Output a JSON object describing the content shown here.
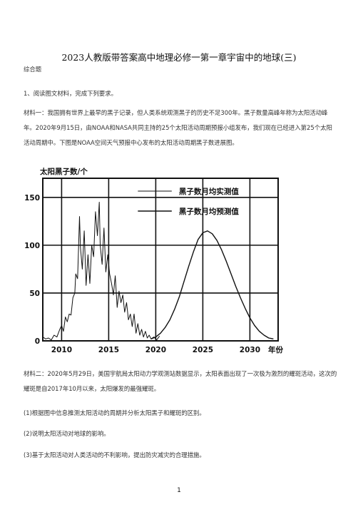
{
  "doc": {
    "title": "2023人教版带答案高中地理必修一第一章宇宙中的地球(三)",
    "section": "综合题",
    "question": "1、阅读图文材料，完成下列要求。",
    "material1": "材料一：我国拥有世界上最早的黑子记录，但人类系统观测黑子的历史不足300年。黑子数量高峰年称为太阳活动峰年。2020年9月15日，由NOAA和NASA共同主持的25个太阳活动周期预报小组发布，我们现在已经进入第25个太阳活动周期中。下图是NOAA空间天气预报中心发布的太阳活动周期黑子数进展图。",
    "material2": "材料二：2020年5月29日，美国宇航局太阳动力学观测站数据显示，太阳表面出现了一次极为激烈的耀斑活动，这次的耀斑是自2017年10月以来，太阳爆发的最强耀斑。",
    "q1": "(1)根据图中信息推测太阳活动的周期并分析太阳黑子和耀斑的区别。",
    "q2": "(2)说明太阳活动对地球的影响。",
    "q3": "(3)基于太阳活动对人类活动的不利影响，提出防灾减灾的合理措施。",
    "page_number": "1"
  },
  "chart_data": {
    "type": "line",
    "ylabel": "太阳黑子数/个",
    "xlabel": "年份",
    "xlim": [
      2008,
      2033
    ],
    "ylim": [
      0,
      170
    ],
    "x_ticks": [
      2010,
      2015,
      2020,
      2025,
      2030
    ],
    "y_ticks": [
      0,
      50,
      100,
      150
    ],
    "grid": true,
    "legend_position": "top-center",
    "series": [
      {
        "name": "黑子数月均实测值",
        "x": [
          2008.0,
          2008.3,
          2008.6,
          2008.9,
          2009.2,
          2009.5,
          2009.8,
          2010.0,
          2010.2,
          2010.4,
          2010.6,
          2010.8,
          2011.0,
          2011.2,
          2011.4,
          2011.5,
          2011.7,
          2011.9,
          2012.0,
          2012.2,
          2012.4,
          2012.6,
          2012.8,
          2013.0,
          2013.2,
          2013.4,
          2013.6,
          2013.8,
          2014.0,
          2014.1,
          2014.3,
          2014.5,
          2014.7,
          2014.9,
          2015.1,
          2015.3,
          2015.5,
          2015.7,
          2015.9,
          2016.1,
          2016.3,
          2016.5,
          2016.7,
          2016.9,
          2017.1,
          2017.3,
          2017.5,
          2017.7,
          2017.9,
          2018.1,
          2018.3,
          2018.5,
          2018.7,
          2018.9,
          2019.1,
          2019.3,
          2019.5,
          2019.8,
          2020.1,
          2020.4
        ],
        "y": [
          4,
          2,
          3,
          1,
          6,
          4,
          12,
          16,
          10,
          25,
          20,
          28,
          27,
          45,
          50,
          70,
          65,
          130,
          98,
          75,
          115,
          58,
          90,
          60,
          100,
          88,
          135,
          110,
          145,
          100,
          80,
          118,
          72,
          90,
          70,
          60,
          48,
          68,
          35,
          52,
          40,
          48,
          30,
          40,
          22,
          28,
          15,
          28,
          8,
          18,
          6,
          12,
          4,
          10,
          3,
          6,
          2,
          4,
          1,
          5
        ]
      },
      {
        "name": "黑子数月均预测值",
        "x": [
          2019.5,
          2020.0,
          2020.5,
          2021.0,
          2021.5,
          2022.0,
          2022.5,
          2023.0,
          2023.5,
          2024.0,
          2024.5,
          2025.0,
          2025.5,
          2026.0,
          2026.5,
          2027.0,
          2027.5,
          2028.0,
          2028.5,
          2029.0,
          2029.5,
          2030.0,
          2030.5,
          2031.0,
          2031.5,
          2032.0,
          2032.5
        ],
        "y": [
          2,
          4,
          8,
          14,
          22,
          33,
          46,
          62,
          78,
          93,
          106,
          113,
          115,
          112,
          105,
          95,
          83,
          70,
          57,
          45,
          34,
          24,
          16,
          10,
          6,
          3,
          2
        ]
      }
    ]
  }
}
